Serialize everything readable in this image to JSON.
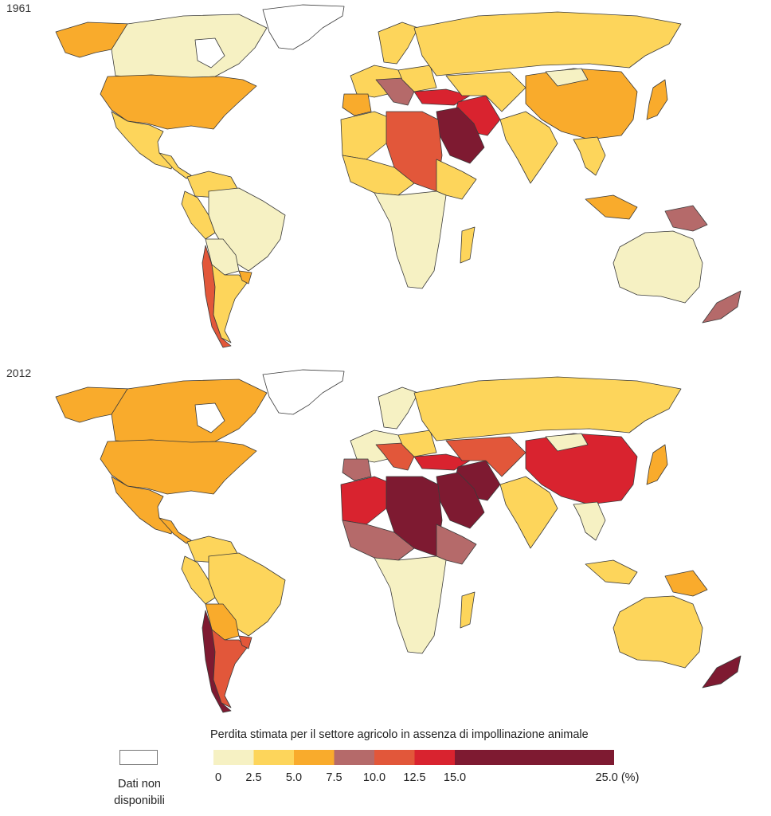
{
  "panels": [
    {
      "year": "1961"
    },
    {
      "year": "2012"
    }
  ],
  "legend": {
    "title": "Perdita stimata per il settore agricolo in assenza di impollinazione  animale",
    "ticks": [
      "0",
      "2.5",
      "5.0",
      "7.5",
      "10.0",
      "12.5",
      "15.0",
      "25.0 (%)"
    ],
    "bins": [
      {
        "from": 0,
        "to": 2.5,
        "color": "#f6f1c3"
      },
      {
        "from": 2.5,
        "to": 5.0,
        "color": "#fdd55b"
      },
      {
        "from": 5.0,
        "to": 7.5,
        "color": "#f9ab2c"
      },
      {
        "from": 7.5,
        "to": 10.0,
        "color": "#b56a6a"
      },
      {
        "from": 10.0,
        "to": 12.5,
        "color": "#e2573a"
      },
      {
        "from": 12.5,
        "to": 15.0,
        "color": "#d9232f"
      },
      {
        "from": 15.0,
        "to": 25.0,
        "color": "#7e1a31"
      }
    ],
    "no_data_label": "Dati non disponibili",
    "no_data_color": "#ffffff"
  },
  "colors": {
    "c0": "#f6f1c3",
    "c1": "#fdd55b",
    "c2": "#f9ab2c",
    "c3": "#b56a6a",
    "c4": "#e2573a",
    "c5": "#d9232f",
    "c6": "#7e1a31",
    "none": "#ffffff"
  }
}
